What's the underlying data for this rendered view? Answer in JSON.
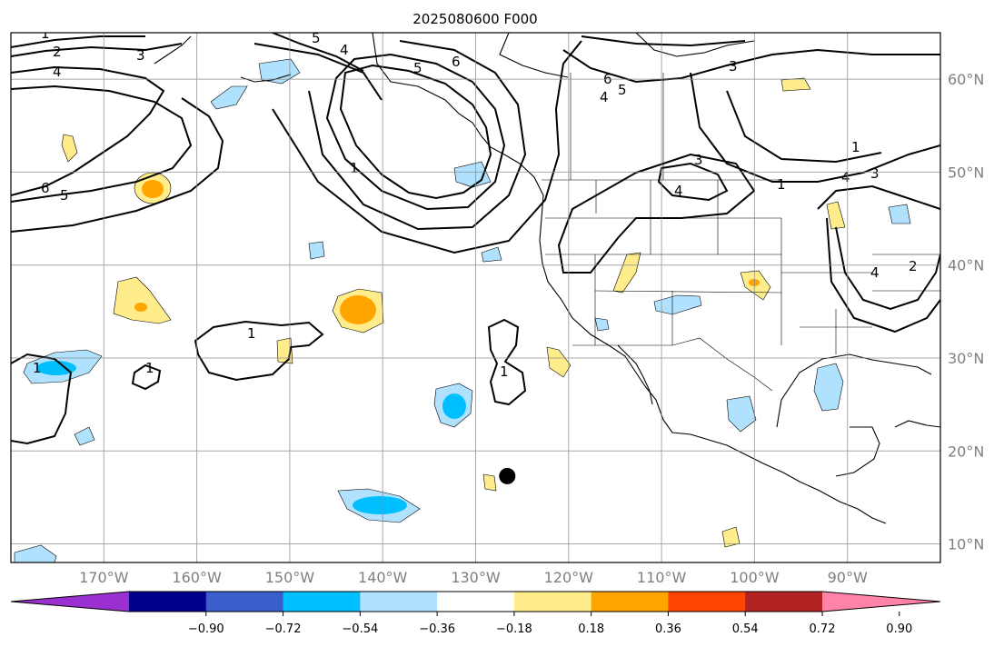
{
  "title": "2025080600 F000",
  "map": {
    "projection": "PlateCarree",
    "lon_range": [
      -180,
      -80
    ],
    "lat_range": [
      8,
      65
    ],
    "grid": true,
    "lon_ticks": [
      "170°W",
      "160°W",
      "150°W",
      "140°W",
      "130°W",
      "120°W",
      "110°W",
      "100°W",
      "90°W"
    ],
    "lat_ticks": [
      "10°N",
      "20°N",
      "30°N",
      "40°N",
      "50°N",
      "60°N"
    ],
    "marker": {
      "name": "point-marker",
      "lon": -126.6,
      "lat": 17.3
    },
    "contour_labels": [
      "1",
      "2",
      "3",
      "4",
      "5",
      "6"
    ]
  },
  "colorbar": {
    "ticks": [
      "−0.90",
      "−0.72",
      "−0.54",
      "−0.36",
      "−0.18",
      "0.18",
      "0.36",
      "0.54",
      "0.72",
      "0.90"
    ],
    "colors": [
      "#9b30d0",
      "#00008b",
      "#3a5fcd",
      "#00bfff",
      "#b0e2ff",
      "#ffffff",
      "#ffec8b",
      "#ffa500",
      "#ff4500",
      "#b22222",
      "#ff83a8"
    ],
    "extend": "both"
  }
}
